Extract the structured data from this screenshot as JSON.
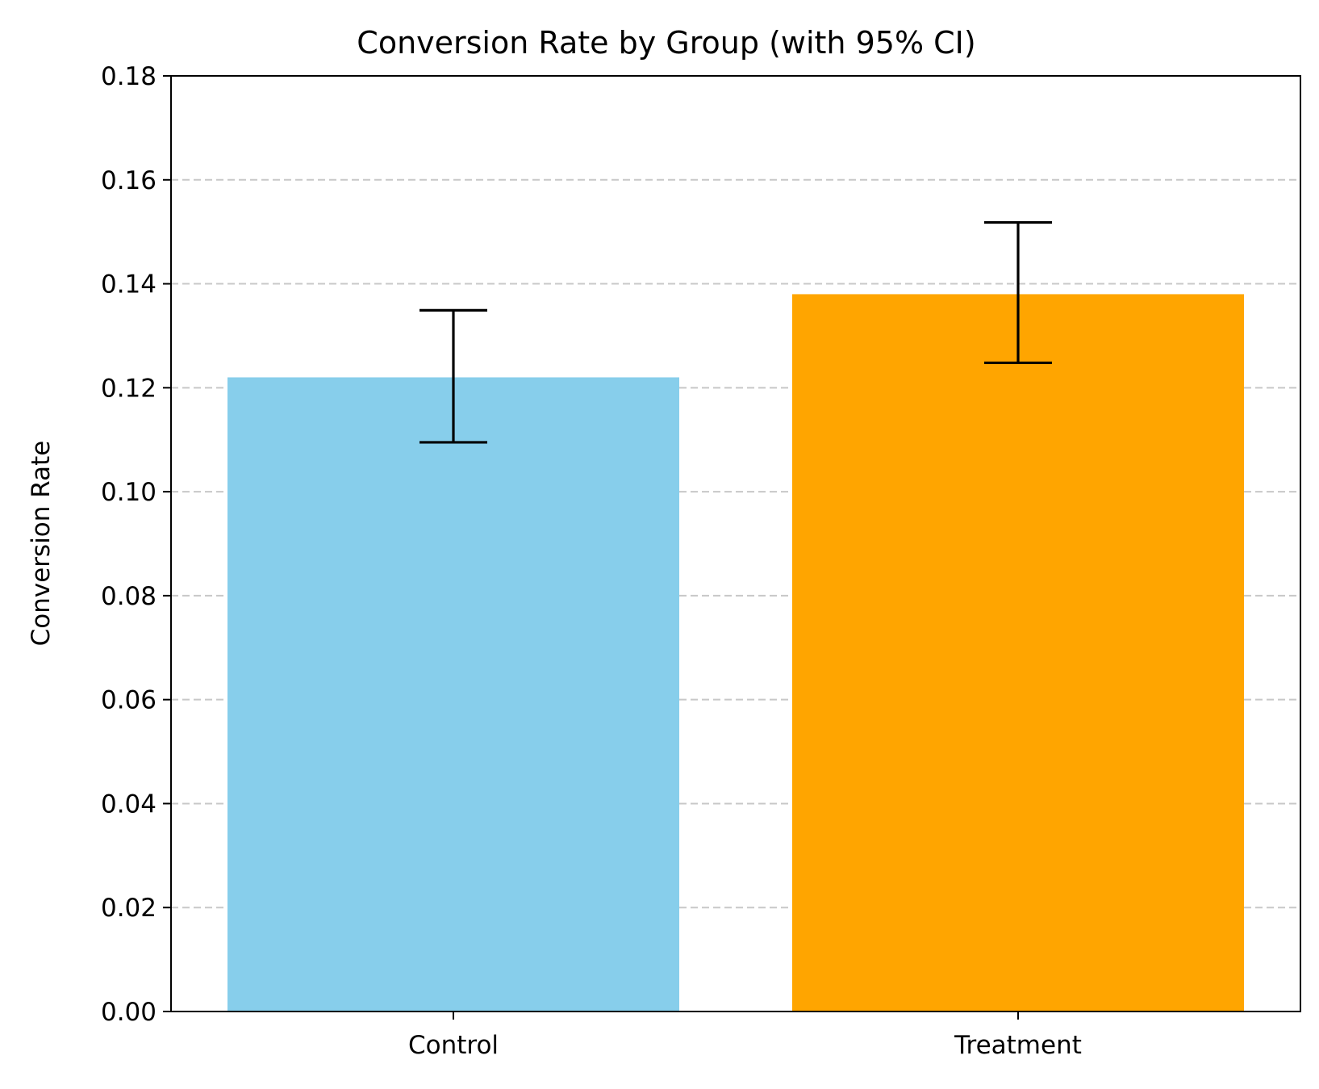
{
  "chart_data": {
    "type": "bar",
    "title": "Conversion Rate by Group (with 95% CI)",
    "xlabel": "",
    "ylabel": "Conversion Rate",
    "categories": [
      "Control",
      "Treatment"
    ],
    "values": [
      0.122,
      0.138
    ],
    "ci_lower": [
      0.1095,
      0.1248
    ],
    "ci_upper": [
      0.1349,
      0.1518
    ],
    "colors": [
      "#87CEEB",
      "#FFA500"
    ],
    "ylim": [
      0,
      0.18
    ],
    "yticks": [
      "0.00",
      "0.02",
      "0.04",
      "0.06",
      "0.08",
      "0.10",
      "0.12",
      "0.14",
      "0.16",
      "0.18"
    ],
    "grid": "y-dashed",
    "legend": "none"
  }
}
